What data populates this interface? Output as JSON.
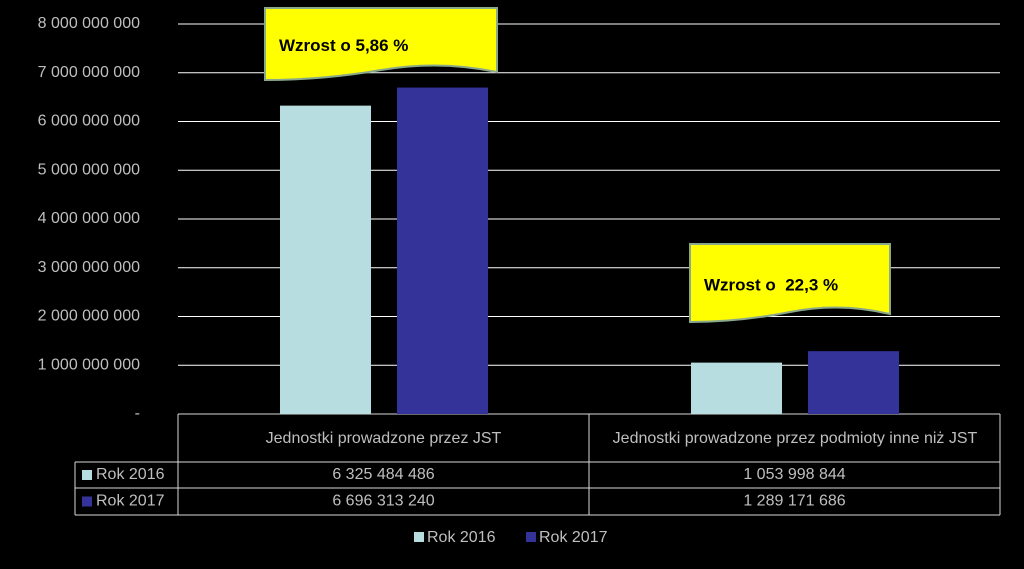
{
  "chart_data": {
    "type": "bar",
    "categories": [
      "Jednostki prowadzone przez JST",
      "Jednostki prowadzone przez podmioty inne niż JST"
    ],
    "series": [
      {
        "name": "Rok 2016",
        "color": "#b7dde0",
        "values": [
          6325484486,
          1053998844
        ],
        "value_labels": [
          "6 325 484 486",
          "1 053 998 844"
        ]
      },
      {
        "name": "Rok 2017",
        "color": "#333399",
        "values": [
          6696313240,
          1289171686
        ],
        "value_labels": [
          "6 696 313 240",
          "1 289 171 686"
        ]
      }
    ],
    "ylim": [
      0,
      8000000000
    ],
    "yticks": [
      {
        "value": 0,
        "label": "-"
      },
      {
        "value": 1000000000,
        "label": "1 000 000 000"
      },
      {
        "value": 2000000000,
        "label": "2 000 000 000"
      },
      {
        "value": 3000000000,
        "label": "3 000 000 000"
      },
      {
        "value": 4000000000,
        "label": "4 000 000 000"
      },
      {
        "value": 5000000000,
        "label": "5 000 000 000"
      },
      {
        "value": 6000000000,
        "label": "6 000 000 000"
      },
      {
        "value": 7000000000,
        "label": "7 000 000 000"
      },
      {
        "value": 8000000000,
        "label": "8 000 000 000"
      }
    ],
    "grid": true,
    "annotations": [
      "Wzrost o 5,86 %",
      "Wzrost o  22,3 %"
    ]
  }
}
